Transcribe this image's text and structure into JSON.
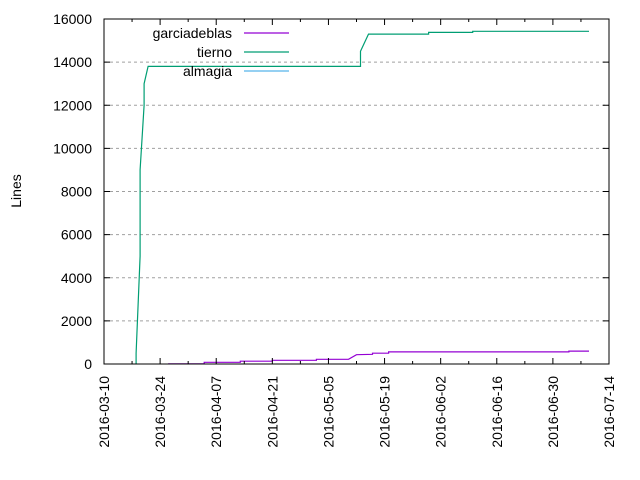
{
  "chart_data": {
    "type": "line",
    "title": "",
    "xlabel": "",
    "ylabel": "Lines",
    "ylim": [
      0,
      16000
    ],
    "xlim": [
      "2016-03-10",
      "2016-07-14"
    ],
    "yticks": [
      "0",
      "2000",
      "4000",
      "6000",
      "8000",
      "10000",
      "12000",
      "14000",
      "16000"
    ],
    "xticks": [
      "2016-03-10",
      "2016-03-24",
      "2016-04-07",
      "2016-04-21",
      "2016-05-05",
      "2016-05-19",
      "2016-06-02",
      "2016-06-16",
      "2016-06-30",
      "2016-07-14"
    ],
    "grid": true,
    "legend_position": "top-left",
    "series": [
      {
        "name": "garciadeblas",
        "color": "#9400d3",
        "points": [
          [
            "2016-03-26",
            10
          ],
          [
            "2016-04-04",
            10
          ],
          [
            "2016-04-04",
            80
          ],
          [
            "2016-04-13",
            80
          ],
          [
            "2016-04-13",
            130
          ],
          [
            "2016-04-21",
            130
          ],
          [
            "2016-04-21",
            170
          ],
          [
            "2016-05-02",
            170
          ],
          [
            "2016-05-02",
            220
          ],
          [
            "2016-05-10",
            220
          ],
          [
            "2016-05-12",
            430
          ],
          [
            "2016-05-16",
            450
          ],
          [
            "2016-05-16",
            500
          ],
          [
            "2016-05-20",
            500
          ],
          [
            "2016-05-20",
            560
          ],
          [
            "2016-07-04",
            560
          ],
          [
            "2016-07-04",
            600
          ],
          [
            "2016-07-09",
            600
          ]
        ]
      },
      {
        "name": "tierno",
        "color": "#009e73",
        "points": [
          [
            "2016-03-18",
            0
          ],
          [
            "2016-03-18",
            500
          ],
          [
            "2016-03-19",
            5000
          ],
          [
            "2016-03-19",
            9000
          ],
          [
            "2016-03-20",
            12000
          ],
          [
            "2016-03-20",
            13000
          ],
          [
            "2016-03-21",
            13800
          ],
          [
            "2016-05-13",
            13800
          ],
          [
            "2016-05-13",
            14500
          ],
          [
            "2016-05-15",
            15300
          ],
          [
            "2016-05-30",
            15300
          ],
          [
            "2016-05-30",
            15380
          ],
          [
            "2016-06-10",
            15380
          ],
          [
            "2016-06-10",
            15430
          ],
          [
            "2016-07-09",
            15430
          ]
        ]
      },
      {
        "name": "almagia",
        "color": "#56b4e9",
        "points": []
      }
    ]
  }
}
